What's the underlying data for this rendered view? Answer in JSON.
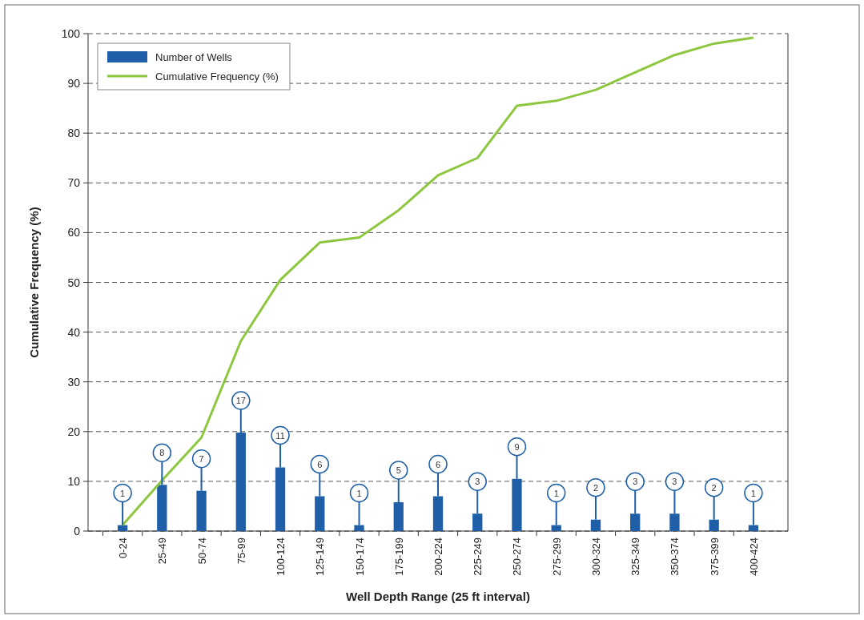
{
  "chart_data": {
    "type": "bar",
    "xlabel": "Well Depth Range (25 ft interval)",
    "ylabel": "Cumulative Frequency (%)",
    "categories": [
      "0-24",
      "25-49",
      "50-74",
      "75-99",
      "100-124",
      "125-149",
      "150-174",
      "175-199",
      "200-224",
      "225-249",
      "250-274",
      "275-299",
      "300-324",
      "325-349",
      "350-374",
      "375-399",
      "400-424"
    ],
    "series": [
      {
        "name": "Number of Wells",
        "color": "#1f5fa8",
        "values": [
          1.2,
          9.3,
          8.1,
          19.8,
          12.8,
          7.0,
          1.2,
          5.8,
          7.0,
          3.5,
          10.5,
          1.2,
          2.3,
          3.5,
          3.5,
          2.3,
          1.2
        ]
      },
      {
        "name": "Cumulative Frequency (%)",
        "type": "line",
        "color": "#8dc63f",
        "values": [
          1.2,
          10.2,
          18.8,
          38.2,
          50.5,
          58,
          59,
          64.5,
          71.5,
          75,
          85.5,
          86.5,
          88.7,
          92.2,
          95.7,
          98,
          99.2
        ]
      }
    ],
    "annotations": [
      {
        "text": "1",
        "x": "0-24",
        "y": 1.2
      },
      {
        "text": "8",
        "x": "25-49",
        "y": 9.3
      },
      {
        "text": "7",
        "x": "50-74",
        "y": 8.1
      },
      {
        "text": "17",
        "x": "75-99",
        "y": 19.8
      },
      {
        "text": "11",
        "x": "100-124",
        "y": 12.8
      },
      {
        "text": "6",
        "x": "125-149",
        "y": 7.0
      },
      {
        "text": "1",
        "x": "150-174",
        "y": 1.2
      },
      {
        "text": "5",
        "x": "175-199",
        "y": 5.8
      },
      {
        "text": "6",
        "x": "200-224",
        "y": 7.0
      },
      {
        "text": "3",
        "x": "225-249",
        "y": 3.5
      },
      {
        "text": "9",
        "x": "250-274",
        "y": 10.5
      },
      {
        "text": "1",
        "x": "275-299",
        "y": 1.2
      },
      {
        "text": "2",
        "x": "300-324",
        "y": 2.3
      },
      {
        "text": "3",
        "x": "325-349",
        "y": 3.5
      },
      {
        "text": "3",
        "x": "350-374",
        "y": 3.5
      },
      {
        "text": "2",
        "x": "375-399",
        "y": 2.3
      },
      {
        "text": "1",
        "x": "400-424",
        "y": 1.2
      }
    ],
    "ylim": [
      0,
      100
    ],
    "yticks": [
      0,
      10,
      20,
      30,
      40,
      50,
      60,
      70,
      80,
      90,
      100
    ],
    "grid": "y",
    "legend": "top left",
    "line_style": "solid",
    "marker": "none"
  }
}
